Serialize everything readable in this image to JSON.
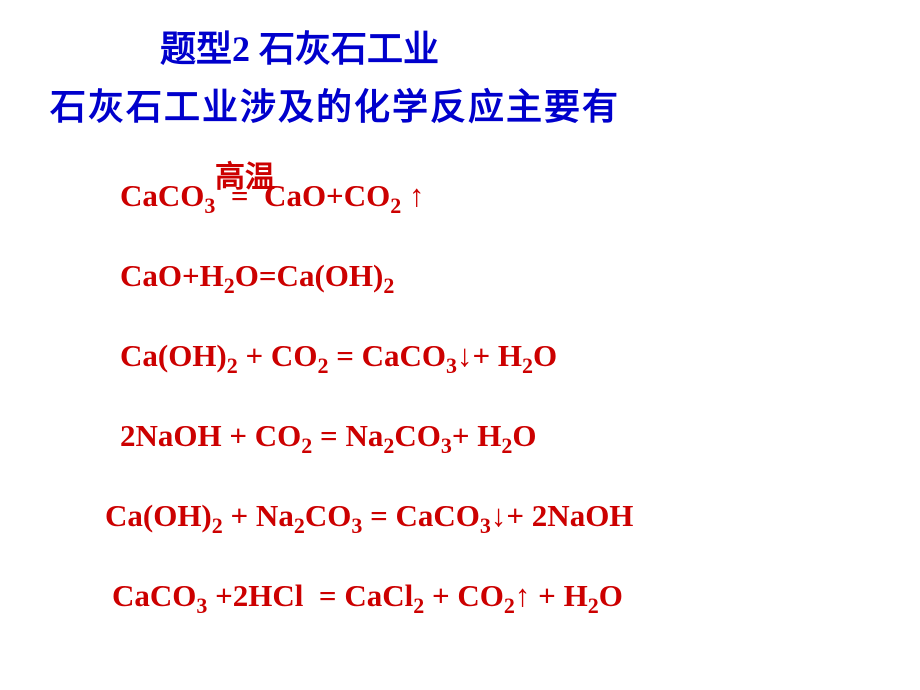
{
  "colors": {
    "title": "#0000cc",
    "equation": "#cc0000",
    "background": "#ffffff"
  },
  "typography": {
    "title_fontsize": 36,
    "equation_fontsize": 31,
    "sub_fontsize": 22,
    "title_font": "SimSun",
    "formula_font": "Times New Roman"
  },
  "title": {
    "prefix": "题型",
    "number": "2",
    "text": "石灰石工业"
  },
  "subtitle": "石灰石工业涉及的化学反应主要有",
  "condition": "高温",
  "equations": [
    {
      "parts": [
        "CaCO",
        {
          "sub": "3"
        },
        " ",
        {
          "eq": "="
        },
        " CaO+CO",
        {
          "sub": "2"
        },
        " ↑"
      ]
    },
    {
      "parts": [
        "CaO+H",
        {
          "sub": "2"
        },
        "O=Ca(OH)",
        {
          "sub": "2"
        }
      ]
    },
    {
      "parts": [
        "Ca(OH)",
        {
          "sub": "2"
        },
        " + CO",
        {
          "sub": "2"
        },
        " = CaCO",
        {
          "sub": "3"
        },
        "↓+ H",
        {
          "sub": "2"
        },
        "O"
      ]
    },
    {
      "parts": [
        "2NaOH + CO",
        {
          "sub": "2"
        },
        " = Na",
        {
          "sub": "2"
        },
        "CO",
        {
          "sub": "3"
        },
        "+ H",
        {
          "sub": "2"
        },
        "O"
      ]
    },
    {
      "parts": [
        "Ca(OH)",
        {
          "sub": "2"
        },
        " + Na",
        {
          "sub": "2"
        },
        "CO",
        {
          "sub": "3"
        },
        " = CaCO",
        {
          "sub": "3"
        },
        "↓+ 2NaOH"
      ]
    },
    {
      "parts": [
        "CaCO",
        {
          "sub": "3"
        },
        " +2HCl  = CaCl",
        {
          "sub": "2"
        },
        " + CO",
        {
          "sub": "2"
        },
        "↑ + H",
        {
          "sub": "2"
        },
        "O"
      ]
    }
  ]
}
